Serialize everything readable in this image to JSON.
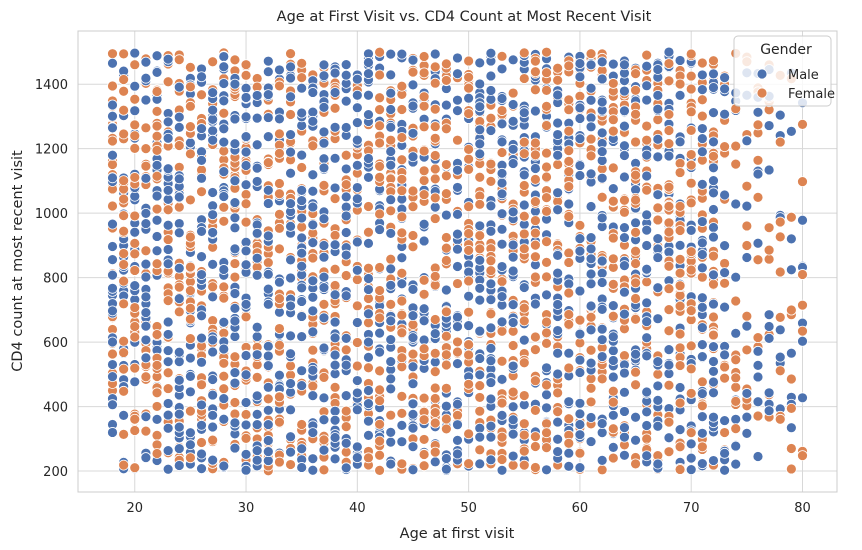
{
  "chart_data": {
    "type": "scatter",
    "title": "Age at First Visit vs. CD4 Count at Most Recent Visit",
    "xlabel": "Age at first visit",
    "ylabel": "CD4 count at most recent visit",
    "xlim": [
      14.9,
      83.1
    ],
    "ylim": [
      135,
      1565
    ],
    "xticks": [
      20,
      30,
      40,
      50,
      60,
      70,
      80
    ],
    "yticks": [
      200,
      400,
      600,
      800,
      1000,
      1200,
      1400
    ],
    "grid": true,
    "x_values": "integer ages 18 through 80",
    "y_range": [
      200,
      1500
    ],
    "legend": {
      "title": "Gender",
      "placement": "top-right",
      "entries": [
        {
          "label": "Male",
          "color": "#4c72b0"
        },
        {
          "label": "Female",
          "color": "#dd8452"
        }
      ]
    },
    "series": [
      {
        "name": "Male",
        "color": "#4c72b0",
        "points_per_age": 27,
        "sparse_ages": {
          "73": 15,
          "74": 13,
          "75": 12,
          "76": 11,
          "77": 10,
          "78": 9,
          "79": 8,
          "80": 7
        }
      },
      {
        "name": "Female",
        "color": "#dd8452",
        "points_per_age": 27,
        "sparse_ages": {
          "73": 15,
          "74": 13,
          "75": 12,
          "76": 11,
          "77": 10,
          "78": 9,
          "79": 8,
          "80": 7
        }
      }
    ],
    "colors": {
      "background": "#ffffff",
      "grid": "#d8d8d8",
      "spine": "#cccccc",
      "marker_edge": "#ffffff"
    }
  }
}
